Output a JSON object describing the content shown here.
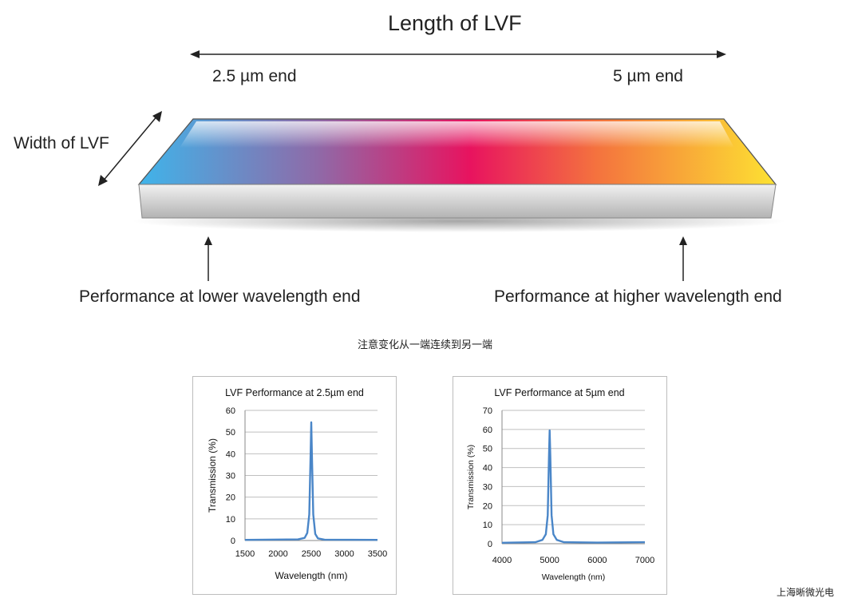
{
  "diagram": {
    "length_label": "Length of LVF",
    "start_label": "2.5 µm end",
    "end_label": "5 µm end",
    "width_label": "Width of LVF",
    "lower_perf_label": "Performance at lower wavelength end",
    "higher_perf_label": "Performance at higher wavelength end",
    "note": "注意变化从一端连续到另一端",
    "credit": "上海晰微光电",
    "gradient_colors": [
      "#3fb4ea",
      "#8f6aa8",
      "#e8135f",
      "#f4733e",
      "#fde232"
    ],
    "line_color": "#4a86c8"
  },
  "chart_data": [
    {
      "type": "line",
      "title": "LVF Performance at 2.5µm end",
      "xlabel": "Wavelength (nm)",
      "ylabel": "Transmission (%)",
      "xlim": [
        1500,
        3500
      ],
      "ylim": [
        0,
        60
      ],
      "xticks": [
        "1500",
        "2000",
        "2500",
        "3000",
        "3500"
      ],
      "yticks": [
        "0",
        "10",
        "20",
        "30",
        "40",
        "50",
        "60"
      ],
      "grid": true,
      "series": [
        {
          "name": "Transmission",
          "x": [
            1500,
            2300,
            2400,
            2440,
            2470,
            2490,
            2500,
            2510,
            2530,
            2560,
            2600,
            2700,
            3500
          ],
          "y": [
            0.3,
            0.5,
            1.2,
            3.5,
            12,
            40,
            54.5,
            40,
            12,
            3,
            1,
            0.4,
            0.3
          ]
        }
      ]
    },
    {
      "type": "line",
      "title": "LVF Performance at 5µm end",
      "xlabel": "Wavelength (nm)",
      "ylabel": "Transmission (%)",
      "xlim": [
        4000,
        7000
      ],
      "ylim": [
        0,
        70
      ],
      "xticks": [
        "4000",
        "5000",
        "6000",
        "7000"
      ],
      "yticks": [
        "0",
        "10",
        "20",
        "30",
        "40",
        "50",
        "60",
        "70"
      ],
      "grid": true,
      "series": [
        {
          "name": "Transmission",
          "x": [
            4000,
            4700,
            4850,
            4920,
            4960,
            4985,
            5000,
            5015,
            5040,
            5080,
            5150,
            5300,
            6000,
            7000
          ],
          "y": [
            0.5,
            0.8,
            2,
            5,
            15,
            45,
            59.5,
            45,
            15,
            5,
            2,
            0.8,
            0.6,
            0.8
          ]
        }
      ]
    }
  ]
}
